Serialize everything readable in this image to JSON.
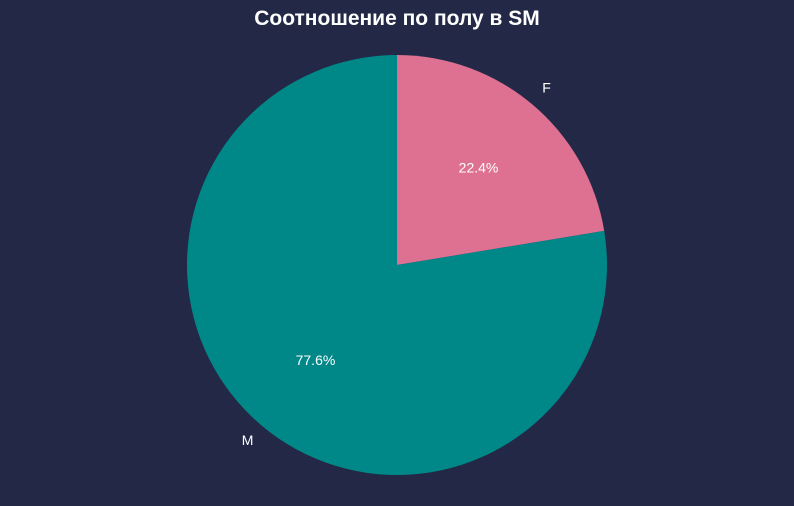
{
  "chart_data": {
    "type": "pie",
    "title": "Соотношение по полу в SM",
    "slices": [
      {
        "label": "F",
        "value": 22.4,
        "pct_label": "22.4%",
        "color": "#de7192"
      },
      {
        "label": "M",
        "value": 77.6,
        "pct_label": "77.6%",
        "color": "#008888"
      }
    ],
    "start_angle_deg": 90,
    "direction": "clockwise",
    "background": "#222846"
  }
}
